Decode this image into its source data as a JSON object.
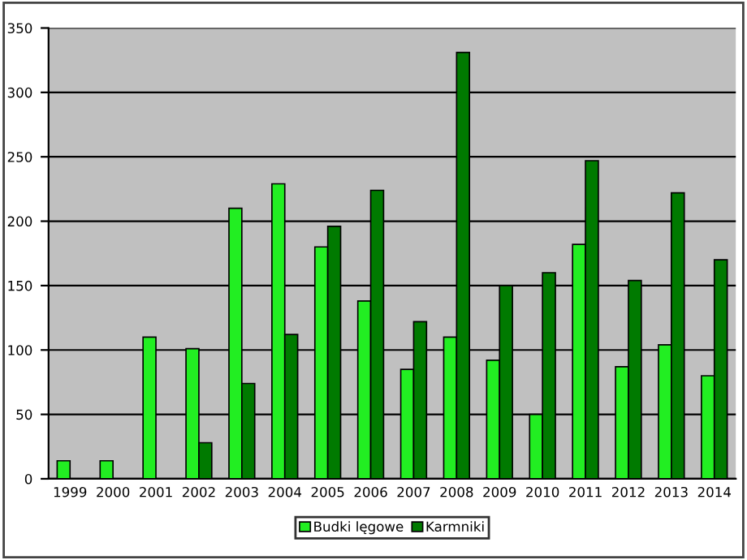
{
  "chart_data": {
    "type": "bar",
    "categories": [
      "1999",
      "2000",
      "2001",
      "2002",
      "2003",
      "2004",
      "2005",
      "2006",
      "2007",
      "2008",
      "2009",
      "2010",
      "2011",
      "2012",
      "2013",
      "2014"
    ],
    "series": [
      {
        "name": "Budki lęgowe",
        "color": "#22ee22",
        "values": [
          14,
          14,
          110,
          101,
          210,
          229,
          180,
          138,
          85,
          110,
          92,
          50,
          182,
          87,
          104,
          80
        ]
      },
      {
        "name": "Karmniki",
        "color": "#007a00",
        "values": [
          null,
          null,
          null,
          28,
          74,
          112,
          196,
          224,
          122,
          331,
          150,
          160,
          247,
          154,
          222,
          170
        ]
      }
    ],
    "ylim": [
      0,
      350
    ],
    "yticks": [
      0,
      50,
      100,
      150,
      200,
      250,
      300,
      350
    ],
    "grid": "y",
    "legend": "bottom"
  }
}
